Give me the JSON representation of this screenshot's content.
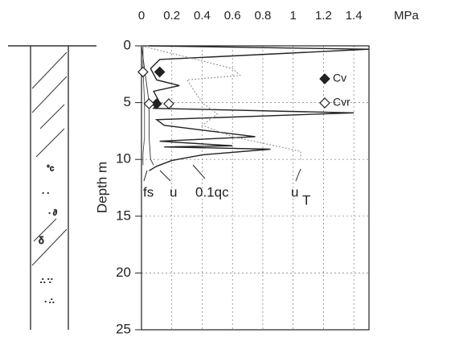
{
  "chart_data": {
    "type": "profile",
    "x_unit": "MPa",
    "y_label": "Depth m",
    "xlim": [
      0,
      1.5
    ],
    "xticks": [
      0,
      0.2,
      0.4,
      0.6,
      0.8,
      1,
      1.2,
      1.4
    ],
    "ylim": [
      0,
      25
    ],
    "yticks": [
      0,
      5,
      10,
      15,
      20,
      25
    ],
    "y_inverted": true,
    "grid": true,
    "series": [
      {
        "name": "0.1qc",
        "color": "#222222",
        "dash": "none",
        "width": 1.4,
        "x": [
          0.05,
          1.5,
          0.12,
          0.06,
          0.1,
          0.25,
          0.08,
          0.12,
          0.08,
          1.4,
          0.1,
          0.15,
          0.75,
          0.12,
          0.6,
          0.15,
          0.85,
          0.4,
          0.2,
          0.1,
          0.05
        ],
        "y": [
          0,
          0.3,
          1.2,
          2,
          3,
          3.5,
          4,
          5,
          5.5,
          5.9,
          6.5,
          7,
          8,
          8.4,
          8.8,
          8.9,
          9.1,
          9.6,
          10.1,
          10.6,
          11
        ]
      },
      {
        "name": "u",
        "subscript": "T",
        "color": "#888888",
        "dash": "2,2",
        "width": 1,
        "x": [
          0,
          0.3,
          0.6,
          0.65,
          0.3,
          0.35,
          0.4,
          0.5,
          0.4,
          0.6,
          0.95,
          1.05,
          1.05
        ],
        "y": [
          0,
          1,
          2,
          2.6,
          3,
          4,
          5,
          6,
          7,
          8,
          9,
          9.3,
          10
        ]
      },
      {
        "name": "u",
        "color": "#333333",
        "dash": "none",
        "width": 0.9,
        "x": [
          0,
          0.02,
          0.04,
          0.05,
          0.05,
          0.06,
          0.08
        ],
        "y": [
          0,
          2,
          4,
          5,
          8,
          10,
          10.5
        ]
      },
      {
        "name": "fs",
        "color": "#333333",
        "dash": "none",
        "width": 0.8,
        "x": [
          0.01,
          0.01,
          0.02,
          0.02,
          0.01,
          0.01
        ],
        "y": [
          0,
          2,
          5,
          8,
          9.5,
          10.5
        ]
      }
    ],
    "markers": [
      {
        "name": "Cv",
        "fill": "#222222",
        "x": [
          0.12,
          0.1
        ],
        "y": [
          2.3,
          5.1
        ]
      },
      {
        "name": "Cvr",
        "fill": "#ffffff",
        "x": [
          0.01,
          0.05,
          0.18
        ],
        "y": [
          2.3,
          5.1,
          5.1
        ]
      }
    ]
  }
}
